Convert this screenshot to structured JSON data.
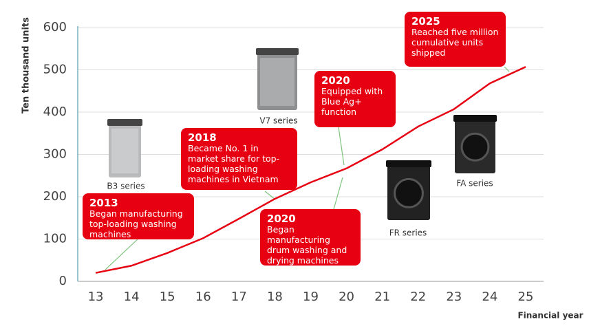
{
  "chart_data": {
    "type": "line",
    "x_label": "Financial year",
    "y_label": "Ten thousand units",
    "x": [
      13,
      14,
      15,
      16,
      17,
      18,
      19,
      20,
      21,
      22,
      23,
      24,
      25
    ],
    "xlim": [
      12.5,
      25.5
    ],
    "xticks": [
      13,
      14,
      15,
      16,
      17,
      18,
      19,
      20,
      21,
      22,
      23,
      24,
      25
    ],
    "ylim": [
      0,
      600
    ],
    "yticks": [
      0,
      100,
      200,
      300,
      400,
      500,
      600
    ],
    "grid": true,
    "series": [
      {
        "color": "#e60012",
        "values": [
          20,
          37,
          67,
          102,
          148,
          195,
          234,
          267,
          312,
          366,
          407,
          468,
          507
        ]
      }
    ],
    "annotations": [
      {
        "year": "2013",
        "text": "Began manufacturing top-loading washing machines"
      },
      {
        "year": "2018",
        "text": "Became No. 1 in market share for top-loading washing machines in Vietnam"
      },
      {
        "year": "2020",
        "text": "Equipped with Blue Ag+ function"
      },
      {
        "year": "2020",
        "text": "Began manufacturing drum washing and drying machines"
      },
      {
        "year": "2025",
        "text": "Reached five million cumulative units shipped"
      }
    ],
    "products": [
      {
        "label": "B3 series"
      },
      {
        "label": "V7 series"
      },
      {
        "label": "FR series"
      },
      {
        "label": "FA series"
      }
    ]
  }
}
